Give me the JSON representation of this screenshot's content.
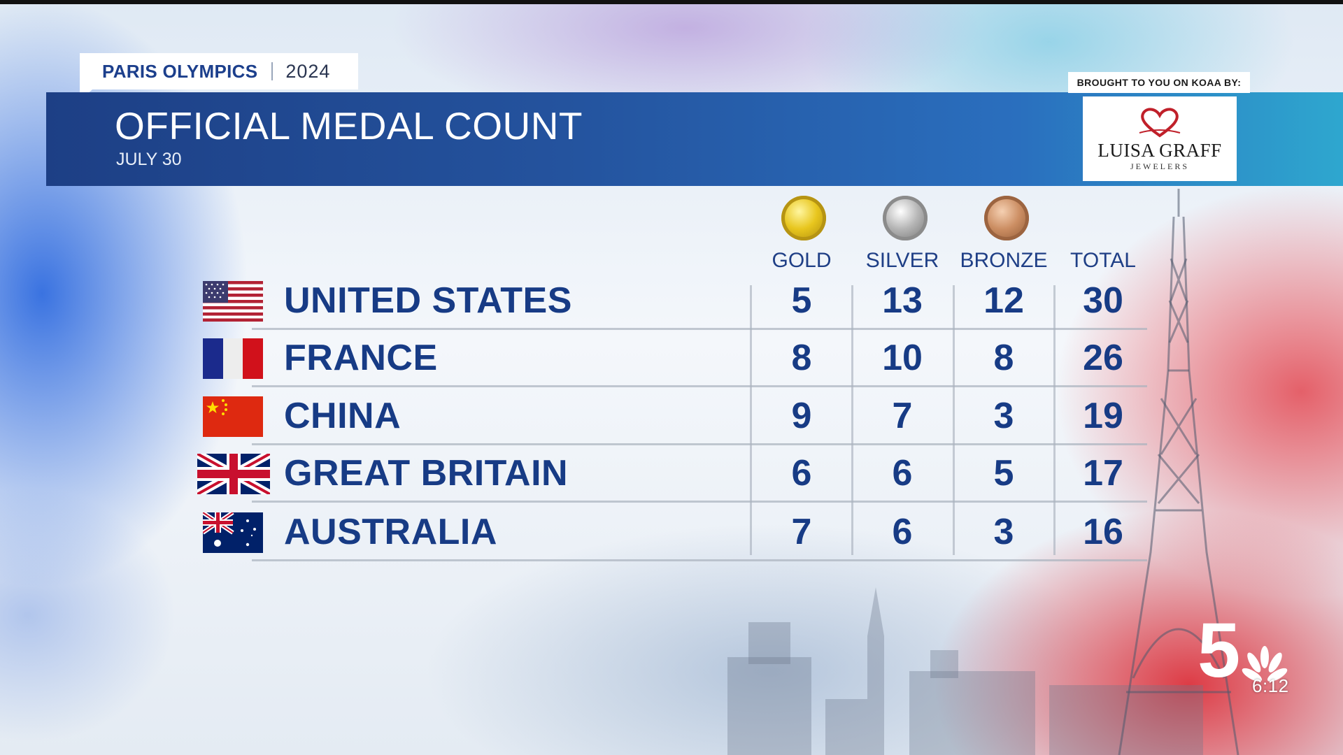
{
  "header": {
    "tab_title": "PARIS OLYMPICS",
    "tab_year": "2024",
    "title": "OFFICIAL MEDAL COUNT",
    "date": "JULY 30"
  },
  "sponsor": {
    "label": "BROUGHT TO YOU ON KOAA BY:",
    "name": "LUISA GRAFF",
    "subtitle": "JEWELERS"
  },
  "columns": {
    "gold": "GOLD",
    "silver": "SILVER",
    "bronze": "BRONZE",
    "total": "TOTAL"
  },
  "rows": [
    {
      "country": "UNITED STATES",
      "flag": "us-flag",
      "gold": "5",
      "silver": "13",
      "bronze": "12",
      "total": "30"
    },
    {
      "country": "FRANCE",
      "flag": "france-flag",
      "gold": "8",
      "silver": "10",
      "bronze": "8",
      "total": "26"
    },
    {
      "country": "CHINA",
      "flag": "china-flag",
      "gold": "9",
      "silver": "7",
      "bronze": "3",
      "total": "19"
    },
    {
      "country": "GREAT BRITAIN",
      "flag": "great-britain-flag",
      "gold": "6",
      "silver": "6",
      "bronze": "5",
      "total": "17"
    },
    {
      "country": "AUSTRALIA",
      "flag": "australia-flag",
      "gold": "7",
      "silver": "6",
      "bronze": "3",
      "total": "16"
    }
  ],
  "station": {
    "logo": "5",
    "time": "6:12"
  },
  "colors": {
    "banner": "#1d3f85",
    "text_primary": "#173b85",
    "gold": "#e8c61e",
    "silver": "#b5b5b5",
    "bronze": "#cc8e63"
  }
}
